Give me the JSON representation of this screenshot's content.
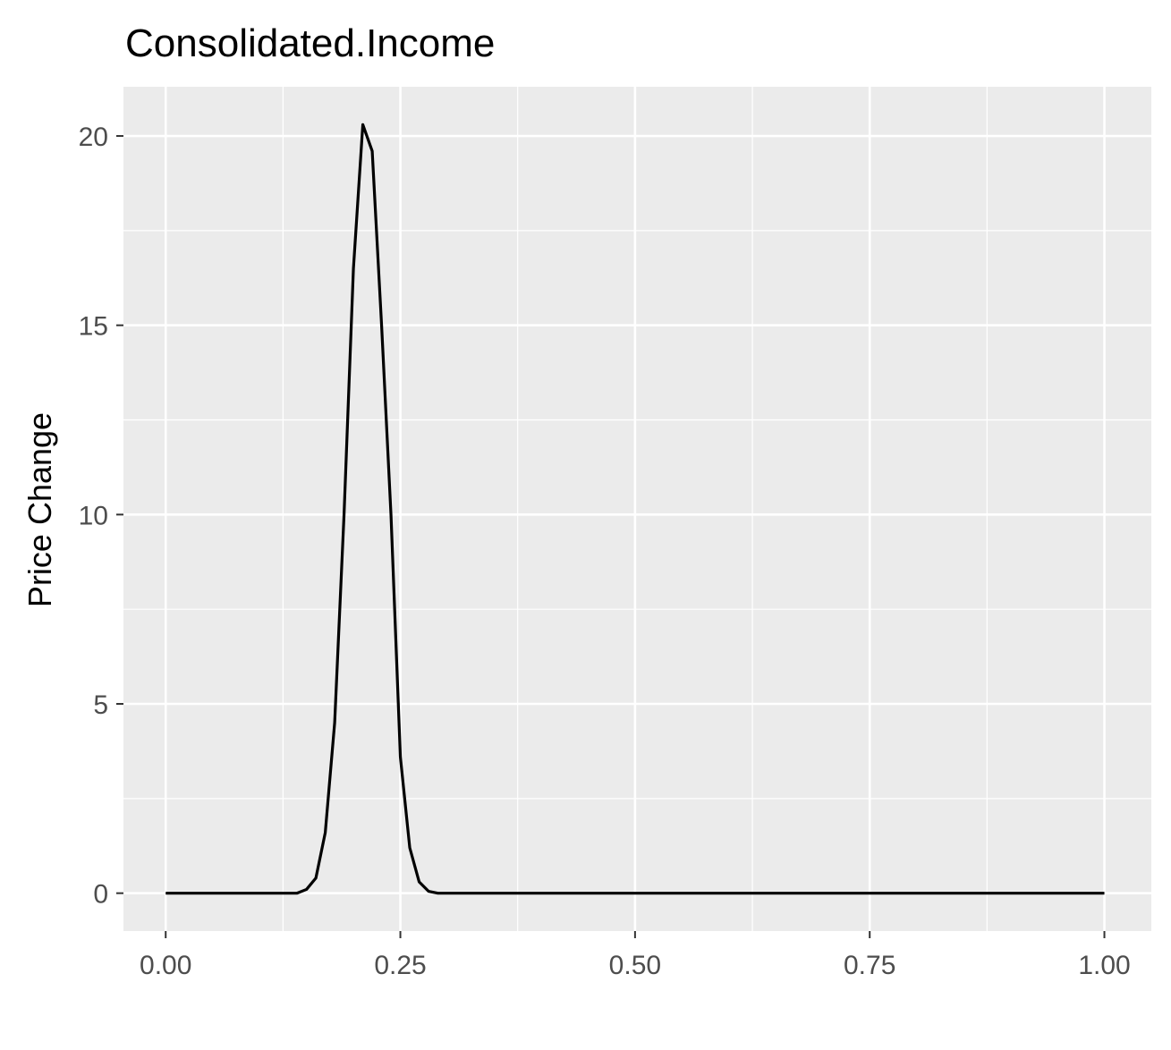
{
  "chart_data": {
    "type": "line",
    "title": "Consolidated.Income",
    "xlabel": "",
    "ylabel": "Price Change",
    "xlim": [
      -0.045,
      1.05
    ],
    "ylim": [
      -1.0,
      21.3
    ],
    "x_ticks": [
      0.0,
      0.25,
      0.5,
      0.75,
      1.0
    ],
    "x_tick_labels": [
      "0.00",
      "0.25",
      "0.50",
      "0.75",
      "1.00"
    ],
    "y_ticks": [
      0,
      5,
      10,
      15,
      20
    ],
    "y_tick_labels": [
      "0",
      "5",
      "10",
      "15",
      "20"
    ],
    "grid": true,
    "colors": {
      "panel": "#ebebeb",
      "grid": "#ffffff",
      "line": "#000000"
    },
    "series": [
      {
        "x": [
          0.0,
          0.14,
          0.15,
          0.16,
          0.17,
          0.18,
          0.19,
          0.2,
          0.21,
          0.22,
          0.23,
          0.24,
          0.25,
          0.26,
          0.27,
          0.28,
          0.29,
          0.3,
          0.4,
          0.5,
          0.6,
          0.7,
          0.8,
          0.9,
          1.0
        ],
        "y": [
          0.0,
          0.0,
          0.1,
          0.4,
          1.6,
          4.5,
          10.0,
          16.5,
          20.3,
          19.6,
          15.0,
          10.0,
          3.6,
          1.2,
          0.3,
          0.05,
          0.0,
          0.0,
          0.0,
          0.0,
          0.0,
          0.0,
          0.0,
          0.0,
          0.0
        ]
      }
    ]
  }
}
